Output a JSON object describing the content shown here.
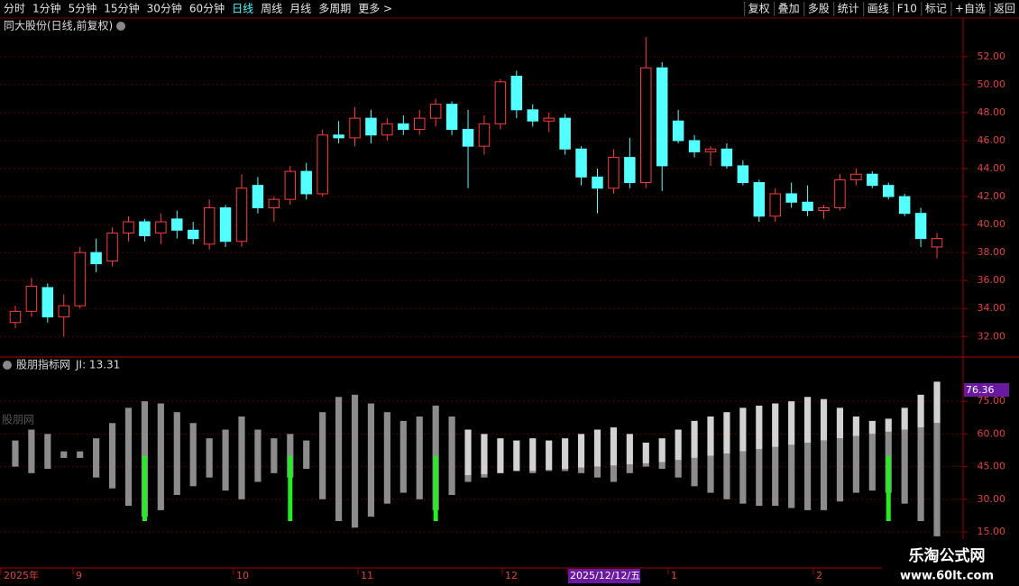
{
  "toolbar": {
    "left": [
      "分时",
      "1分钟",
      "5分钟",
      "15分钟",
      "30分钟",
      "60分钟",
      "日线",
      "周线",
      "月线",
      "多周期",
      "更多 >"
    ],
    "right": [
      "复权",
      "叠加",
      "多股",
      "统计",
      "画线",
      "F10",
      "标记",
      "+自选",
      "返回"
    ],
    "active": "日线"
  },
  "chart_data": [
    {
      "type": "candlestick",
      "title": "同大股份(日线,前复权)",
      "up_color": "#ff3b3b",
      "down_color": "#54ffff",
      "grid": true,
      "ylim": [
        30.6,
        53.6
      ],
      "yticks": [
        {
          "value": 32,
          "label": "32.00"
        },
        {
          "value": 34,
          "label": "34.00"
        },
        {
          "value": 36,
          "label": "36.00"
        },
        {
          "value": 38,
          "label": "38.00"
        },
        {
          "value": 40,
          "label": "40.00"
        },
        {
          "value": 42,
          "label": "42.00"
        },
        {
          "value": 44,
          "label": "44.00"
        },
        {
          "value": 46,
          "label": "46.00"
        },
        {
          "value": 48,
          "label": "48.00"
        },
        {
          "value": 50,
          "label": "50.00"
        },
        {
          "value": 52,
          "label": "52.00"
        }
      ],
      "candles": [
        [
          33.0,
          34.2,
          32.6,
          33.8
        ],
        [
          33.8,
          36.2,
          33.4,
          35.6
        ],
        [
          35.5,
          35.8,
          33.0,
          33.4
        ],
        [
          33.4,
          35.0,
          32.0,
          34.2
        ],
        [
          34.2,
          38.4,
          34.0,
          38.0
        ],
        [
          38.0,
          39.0,
          36.6,
          37.2
        ],
        [
          37.4,
          39.8,
          37.0,
          39.4
        ],
        [
          39.4,
          40.6,
          38.8,
          40.2
        ],
        [
          40.2,
          40.4,
          38.8,
          39.2
        ],
        [
          39.4,
          40.8,
          38.6,
          40.2
        ],
        [
          40.4,
          41.0,
          39.0,
          39.6
        ],
        [
          39.6,
          40.2,
          38.6,
          39.0
        ],
        [
          38.6,
          41.8,
          38.2,
          41.2
        ],
        [
          41.2,
          41.4,
          38.4,
          38.8
        ],
        [
          38.8,
          43.6,
          38.4,
          42.6
        ],
        [
          42.8,
          43.4,
          40.8,
          41.2
        ],
        [
          41.2,
          42.0,
          40.2,
          41.8
        ],
        [
          41.8,
          44.2,
          41.4,
          43.8
        ],
        [
          43.8,
          44.4,
          41.8,
          42.2
        ],
        [
          42.2,
          46.8,
          42.0,
          46.4
        ],
        [
          46.4,
          47.4,
          45.8,
          46.2
        ],
        [
          46.2,
          48.4,
          45.6,
          47.6
        ],
        [
          47.6,
          48.2,
          45.8,
          46.4
        ],
        [
          46.4,
          47.6,
          46.0,
          47.2
        ],
        [
          47.2,
          47.8,
          46.4,
          46.8
        ],
        [
          46.8,
          48.2,
          46.4,
          47.6
        ],
        [
          47.6,
          49.0,
          47.0,
          48.6
        ],
        [
          48.6,
          48.8,
          46.4,
          46.8
        ],
        [
          46.8,
          48.2,
          42.6,
          45.6
        ],
        [
          45.6,
          47.8,
          45.0,
          47.2
        ],
        [
          47.2,
          50.4,
          46.8,
          50.2
        ],
        [
          50.6,
          51.0,
          47.6,
          48.2
        ],
        [
          48.2,
          48.6,
          47.0,
          47.4
        ],
        [
          47.4,
          48.0,
          46.6,
          47.6
        ],
        [
          47.6,
          47.9,
          45.0,
          45.4
        ],
        [
          45.4,
          45.6,
          42.8,
          43.4
        ],
        [
          43.4,
          44.0,
          40.8,
          42.6
        ],
        [
          42.6,
          45.4,
          42.2,
          44.8
        ],
        [
          44.8,
          46.2,
          42.6,
          43.0
        ],
        [
          43.0,
          53.4,
          42.6,
          51.2
        ],
        [
          51.2,
          51.6,
          42.4,
          44.2
        ],
        [
          47.4,
          48.2,
          45.8,
          46.0
        ],
        [
          46.0,
          46.4,
          44.8,
          45.2
        ],
        [
          45.2,
          45.6,
          44.2,
          45.4
        ],
        [
          45.4,
          45.8,
          44.0,
          44.2
        ],
        [
          44.2,
          44.6,
          42.8,
          43.0
        ],
        [
          43.0,
          43.2,
          40.2,
          40.6
        ],
        [
          40.6,
          42.6,
          40.2,
          42.2
        ],
        [
          42.2,
          43.0,
          41.2,
          41.6
        ],
        [
          41.6,
          42.8,
          40.6,
          41.0
        ],
        [
          41.0,
          41.4,
          40.4,
          41.2
        ],
        [
          41.2,
          43.6,
          41.0,
          43.2
        ],
        [
          43.2,
          44.0,
          42.8,
          43.6
        ],
        [
          43.6,
          43.8,
          42.6,
          42.8
        ],
        [
          42.8,
          43.0,
          41.8,
          42.0
        ],
        [
          42.0,
          42.2,
          40.6,
          40.8
        ],
        [
          40.8,
          41.2,
          38.4,
          39.0
        ],
        [
          38.4,
          39.4,
          37.6,
          39.0
        ]
      ]
    },
    {
      "type": "bar",
      "title": "股朋指标网",
      "readout": "JI: 13.31",
      "watermark": "股朋网",
      "value_tag": "76.36",
      "bar_color": "#8c8c8c",
      "light_color": "#d2d2d2",
      "signal_color": "#22ee22",
      "ylim": [
        -0.7,
        88.7
      ],
      "yticks": [
        {
          "value": 15,
          "label": "15.00"
        },
        {
          "value": 30,
          "label": "30.00"
        },
        {
          "value": 45,
          "label": "45.00"
        },
        {
          "value": 60,
          "label": "60.00"
        },
        {
          "value": 75,
          "label": "75.00"
        }
      ],
      "bars": [
        [
          57,
          45
        ],
        [
          62,
          42
        ],
        [
          60,
          44
        ],
        [
          52,
          49
        ],
        [
          52,
          49
        ],
        [
          58,
          40
        ],
        [
          65,
          35
        ],
        [
          72,
          27
        ],
        [
          75,
          22
        ],
        [
          74,
          25
        ],
        [
          70,
          32
        ],
        [
          65,
          36
        ],
        [
          58,
          40
        ],
        [
          62,
          34
        ],
        [
          68,
          30
        ],
        [
          62,
          38
        ],
        [
          58,
          42
        ],
        [
          60,
          40
        ],
        [
          57,
          44
        ],
        [
          70,
          30
        ],
        [
          77,
          20
        ],
        [
          78,
          17
        ],
        [
          74,
          22
        ],
        [
          70,
          28
        ],
        [
          66,
          33
        ],
        [
          68,
          30
        ],
        [
          73,
          25
        ],
        [
          68,
          32
        ],
        [
          62,
          38
        ],
        [
          60,
          40
        ],
        [
          58,
          42
        ],
        [
          57,
          43
        ],
        [
          58,
          42
        ],
        [
          57,
          43
        ],
        [
          58,
          43
        ],
        [
          60,
          42
        ],
        [
          62,
          40
        ],
        [
          63,
          38
        ],
        [
          60,
          42
        ],
        [
          56,
          45
        ],
        [
          58,
          44
        ],
        [
          62,
          40
        ],
        [
          66,
          36
        ],
        [
          68,
          33
        ],
        [
          70,
          30
        ],
        [
          72,
          28
        ],
        [
          73,
          27
        ],
        [
          74,
          27
        ],
        [
          75,
          26
        ],
        [
          77,
          25
        ],
        [
          76,
          25
        ],
        [
          72,
          29
        ],
        [
          68,
          33
        ],
        [
          66,
          34
        ],
        [
          67,
          33
        ],
        [
          72,
          28
        ],
        [
          78,
          20
        ],
        [
          84,
          13
        ]
      ],
      "line": [
        null,
        null,
        null,
        null,
        null,
        null,
        null,
        null,
        null,
        null,
        null,
        null,
        null,
        null,
        null,
        null,
        null,
        null,
        null,
        null,
        null,
        null,
        null,
        null,
        null,
        null,
        null,
        null,
        41,
        41.5,
        42,
        42.5,
        43,
        43.5,
        44,
        44.5,
        45,
        45.5,
        46,
        46.5,
        47,
        48,
        49,
        50,
        51,
        52,
        53,
        54,
        55,
        56,
        57,
        58,
        59,
        60,
        61,
        62,
        63,
        65
      ],
      "signals": [
        null,
        null,
        null,
        null,
        null,
        null,
        null,
        null,
        [
          20,
          50
        ],
        null,
        null,
        null,
        null,
        null,
        null,
        null,
        null,
        [
          20,
          50
        ],
        null,
        null,
        null,
        null,
        null,
        null,
        null,
        null,
        [
          20,
          50
        ],
        null,
        null,
        null,
        null,
        null,
        null,
        null,
        null,
        null,
        null,
        null,
        null,
        null,
        null,
        null,
        null,
        null,
        null,
        null,
        null,
        null,
        null,
        null,
        null,
        null,
        null,
        null,
        [
          20,
          50
        ],
        null,
        null,
        null
      ]
    }
  ],
  "date_axis": [
    "2025年",
    "9",
    "10",
    "11",
    "12",
    "2025/12/12/五",
    "1",
    "2"
  ],
  "corner": {
    "name": "乐淘公式网",
    "url": "www.60lt.com"
  }
}
